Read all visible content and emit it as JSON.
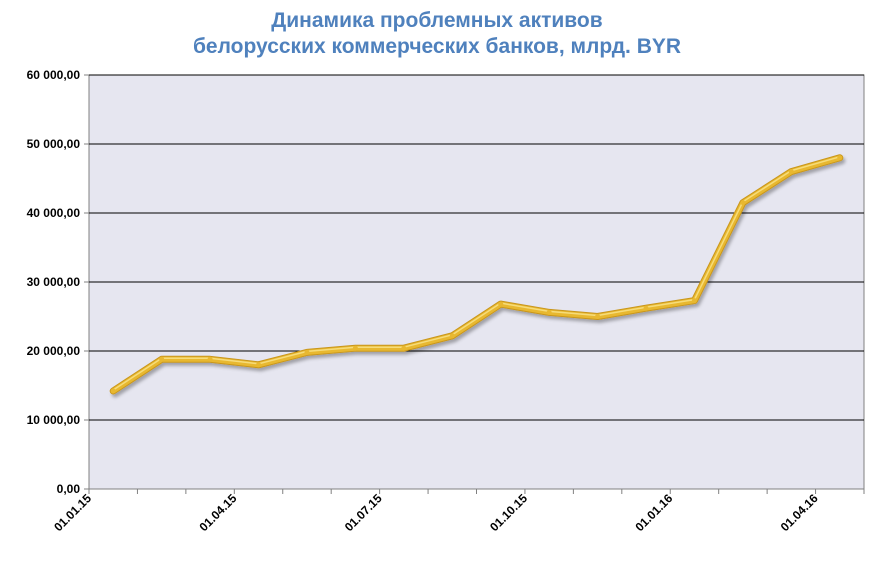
{
  "chart_data": {
    "type": "line",
    "title_lines": [
      "Динамика проблемных активов",
      "белорусских коммерческих банков, млрд. BYR"
    ],
    "xlabel": "",
    "ylabel": "",
    "ylim": [
      0,
      60000
    ],
    "yticks": [
      0,
      10000,
      20000,
      30000,
      40000,
      50000,
      60000
    ],
    "ytick_labels": [
      "0,00",
      "10 000,00",
      "20 000,00",
      "30 000,00",
      "40 000,00",
      "50 000,00",
      "60 000,00"
    ],
    "x_ticks": [
      "01.01.15",
      "01.04.15",
      "01.07.15",
      "01.10.15",
      "01.01.16",
      "01.04.16"
    ],
    "grid": true,
    "colors": {
      "line": "#e8b830",
      "plot_bg": "#e6e6f0",
      "title": "#4f81bd"
    },
    "series": [
      {
        "x": [
          0.5,
          1.5,
          2.5,
          3.5,
          4.5,
          5.5,
          6.5,
          7.5,
          8.5,
          9.5,
          10.5,
          11.5,
          12.5,
          13.5,
          14.5,
          15.5
        ],
        "values": [
          14200,
          18800,
          18800,
          18000,
          19800,
          20400,
          20400,
          22200,
          26800,
          25600,
          25000,
          26200,
          27300,
          41500,
          46000,
          48000
        ]
      }
    ]
  }
}
